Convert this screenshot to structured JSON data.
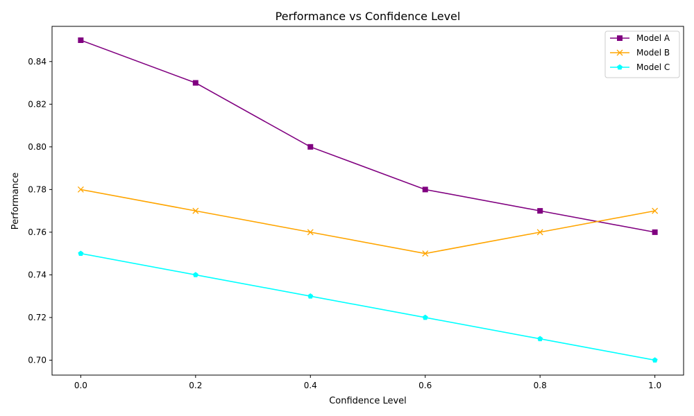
{
  "chart_data": {
    "type": "line",
    "title": "Performance vs Confidence Level",
    "xlabel": "Confidence Level",
    "ylabel": "Performance",
    "x": [
      0.0,
      0.2,
      0.4,
      0.6,
      0.8,
      1.0
    ],
    "xlim": [
      -0.05,
      1.05
    ],
    "ylim": [
      0.693,
      0.8565
    ],
    "xticks": [
      "0.0",
      "0.2",
      "0.4",
      "0.6",
      "0.8",
      "1.0"
    ],
    "yticks": [
      "0.70",
      "0.72",
      "0.74",
      "0.76",
      "0.78",
      "0.80",
      "0.82",
      "0.84"
    ],
    "grid": false,
    "legend_position": "top-right",
    "series": [
      {
        "name": "Model A",
        "values": [
          0.85,
          0.83,
          0.8,
          0.78,
          0.77,
          0.76
        ],
        "color": "#800080",
        "marker": "square"
      },
      {
        "name": "Model B",
        "values": [
          0.78,
          0.77,
          0.76,
          0.75,
          0.76,
          0.77
        ],
        "color": "#FFA500",
        "marker": "x"
      },
      {
        "name": "Model C",
        "values": [
          0.75,
          0.74,
          0.73,
          0.72,
          0.71,
          0.7
        ],
        "color": "#00FFFF",
        "marker": "pentagon"
      }
    ]
  }
}
